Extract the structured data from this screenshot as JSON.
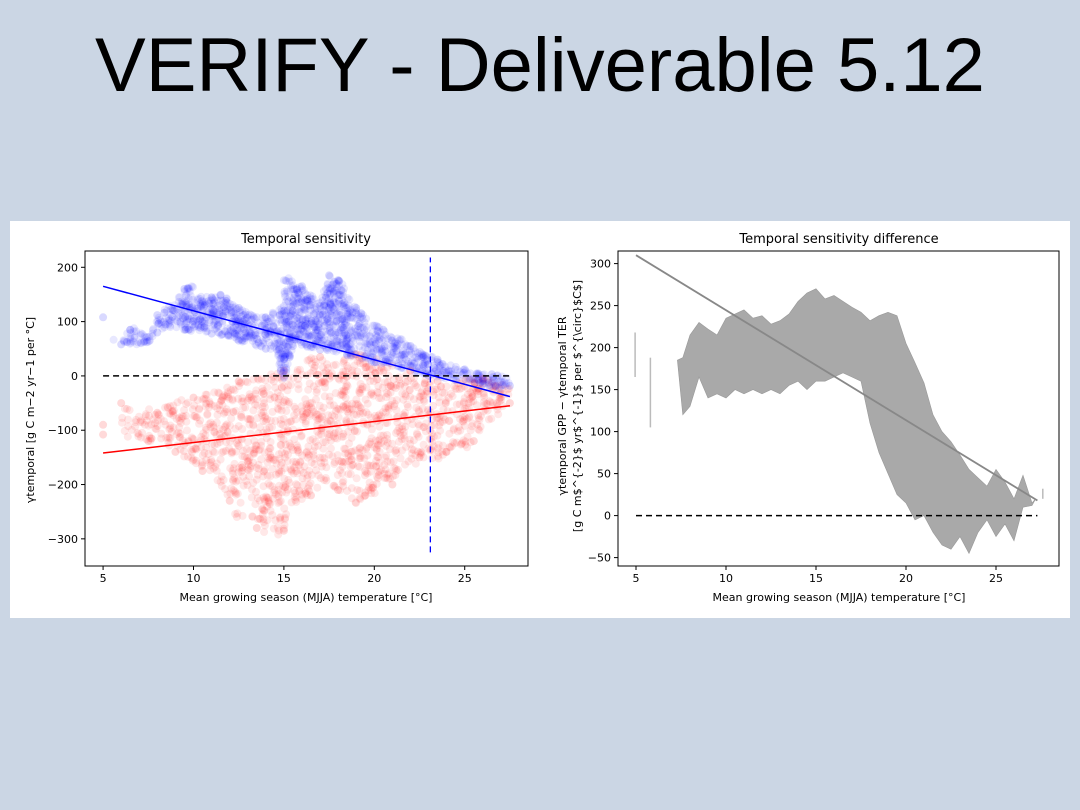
{
  "slide": {
    "title": "VERIFY - Deliverable 5.12"
  },
  "chart_data": [
    {
      "type": "scatter",
      "title": "Temporal sensitivity",
      "xlabel": "Mean growing season (MJJA) temperature [°C]",
      "ylabel": "γtemporal [g C m−2 yr−1 per °C]",
      "xlim": [
        4,
        28.5
      ],
      "ylim": [
        -350,
        230
      ],
      "xticks": [
        5,
        10,
        15,
        20,
        25
      ],
      "yticks": [
        -300,
        -200,
        -100,
        0,
        100,
        200
      ],
      "grid": false,
      "series": [
        {
          "color": "#0000ff",
          "cloud": [
            [
              5,
              108
            ],
            [
              5,
              72
            ],
            [
              6,
              65
            ],
            [
              6.5,
              85
            ],
            [
              7,
              95
            ],
            [
              7.5,
              70
            ],
            [
              8,
              112
            ],
            [
              8.5,
              125
            ],
            [
              9,
              140
            ],
            [
              9.5,
              160
            ],
            [
              10,
              172
            ],
            [
              10,
              150
            ],
            [
              11,
              145
            ],
            [
              11.5,
              150
            ],
            [
              12,
              140
            ],
            [
              12.5,
              125
            ],
            [
              13,
              118
            ],
            [
              13.5,
              112
            ],
            [
              14,
              108
            ],
            [
              15,
              130
            ],
            [
              15,
              185
            ],
            [
              16,
              165
            ],
            [
              16.5,
              150
            ],
            [
              17,
              140
            ],
            [
              17.5,
              185
            ],
            [
              18,
              190
            ],
            [
              18.5,
              150
            ],
            [
              19,
              125
            ],
            [
              19.5,
              110
            ],
            [
              20,
              95
            ],
            [
              20.5,
              85
            ],
            [
              21,
              72
            ],
            [
              21.5,
              68
            ],
            [
              22,
              55
            ],
            [
              22.5,
              45
            ],
            [
              23,
              40
            ],
            [
              23.5,
              30
            ],
            [
              24,
              25
            ],
            [
              24.5,
              18
            ],
            [
              25,
              12
            ],
            [
              25.5,
              8
            ],
            [
              26,
              5
            ],
            [
              26.5,
              3
            ],
            [
              27,
              0
            ],
            [
              27.5,
              -5
            ],
            [
              27.5,
              -18
            ],
            [
              27,
              -25
            ],
            [
              26.5,
              -22
            ],
            [
              26,
              -15
            ],
            [
              25.5,
              -12
            ],
            [
              25,
              -10
            ],
            [
              24.5,
              -8
            ],
            [
              24,
              -5
            ],
            [
              23.5,
              -2
            ],
            [
              23,
              0
            ],
            [
              22.5,
              5
            ],
            [
              22,
              10
            ],
            [
              21.5,
              15
            ],
            [
              21,
              20
            ],
            [
              20.5,
              22
            ],
            [
              20,
              25
            ],
            [
              19.5,
              28
            ],
            [
              19,
              32
            ],
            [
              18.5,
              38
            ],
            [
              18,
              42
            ],
            [
              17.5,
              45
            ],
            [
              17,
              48
            ],
            [
              16.5,
              52
            ],
            [
              16,
              55
            ],
            [
              15.5,
              55
            ],
            [
              15,
              -10
            ],
            [
              14.5,
              45
            ],
            [
              14,
              50
            ],
            [
              13.5,
              55
            ],
            [
              13,
              60
            ],
            [
              12.5,
              65
            ],
            [
              12,
              72
            ],
            [
              11.5,
              75
            ],
            [
              11,
              78
            ],
            [
              10.5,
              80
            ],
            [
              10,
              82
            ],
            [
              9.5,
              85
            ],
            [
              9,
              90
            ],
            [
              8.5,
              88
            ],
            [
              8,
              80
            ],
            [
              7.5,
              62
            ],
            [
              7,
              58
            ],
            [
              6,
              58
            ],
            [
              5,
              72
            ]
          ],
          "fit": {
            "x": [
              5,
              27.5
            ],
            "y": [
              165,
              -38
            ]
          }
        },
        {
          "color": "#ff0000",
          "cloud": [
            [
              5,
              -90
            ],
            [
              5,
              -108
            ],
            [
              6,
              -100
            ],
            [
              6,
              -50
            ],
            [
              7,
              -75
            ],
            [
              7.5,
              -60
            ],
            [
              8,
              -68
            ],
            [
              8.5,
              -55
            ],
            [
              9,
              -45
            ],
            [
              10,
              -40
            ],
            [
              11,
              -30
            ],
            [
              12,
              -20
            ],
            [
              12.5,
              -10
            ],
            [
              13,
              -5
            ],
            [
              14,
              0
            ],
            [
              15,
              10
            ],
            [
              16,
              20
            ],
            [
              16.5,
              35
            ],
            [
              17,
              35
            ],
            [
              18,
              20
            ],
            [
              18.5,
              40
            ],
            [
              19,
              40
            ],
            [
              20,
              35
            ],
            [
              21,
              20
            ],
            [
              22,
              10
            ],
            [
              22.5,
              0
            ],
            [
              23,
              -5
            ],
            [
              23.5,
              -10
            ],
            [
              24,
              -5
            ],
            [
              25,
              -2
            ],
            [
              26,
              -5
            ],
            [
              27,
              -10
            ],
            [
              27.5,
              -20
            ],
            [
              27.5,
              -50
            ],
            [
              27,
              -70
            ],
            [
              26,
              -90
            ],
            [
              25.5,
              -120
            ],
            [
              25,
              -140
            ],
            [
              24.5,
              -130
            ],
            [
              24,
              -140
            ],
            [
              23.5,
              -160
            ],
            [
              23,
              -150
            ],
            [
              22.5,
              -150
            ],
            [
              22,
              -180
            ],
            [
              21.5,
              -160
            ],
            [
              21,
              -200
            ],
            [
              20.5,
              -190
            ],
            [
              20,
              -220
            ],
            [
              19.5,
              -220
            ],
            [
              19,
              -235
            ],
            [
              18.5,
              -215
            ],
            [
              18,
              -210
            ],
            [
              17.5,
              -200
            ],
            [
              17,
              -200
            ],
            [
              16.5,
              -220
            ],
            [
              16,
              -230
            ],
            [
              15.5,
              -260
            ],
            [
              15,
              -285
            ],
            [
              14.5,
              -300
            ],
            [
              14,
              -292
            ],
            [
              13.5,
              -280
            ],
            [
              13,
              -250
            ],
            [
              12.5,
              -270
            ],
            [
              12,
              -230
            ],
            [
              11.5,
              -200
            ],
            [
              11,
              -180
            ],
            [
              10.5,
              -175
            ],
            [
              10,
              -165
            ],
            [
              9.5,
              -150
            ],
            [
              9,
              -140
            ],
            [
              8.5,
              -128
            ],
            [
              8,
              -125
            ],
            [
              7.5,
              -120
            ],
            [
              7,
              -118
            ],
            [
              6,
              -115
            ],
            [
              5,
              -108
            ]
          ],
          "fit": {
            "x": [
              5,
              27.5
            ],
            "y": [
              -142,
              -55
            ]
          }
        }
      ],
      "reference_lines": [
        {
          "orientation": "horizontal",
          "y": 0,
          "style": "dashed",
          "color": "#000000"
        },
        {
          "orientation": "vertical",
          "x": 23.1,
          "style": "dashed",
          "color": "#0000ff",
          "y_range": [
            -325,
            218
          ]
        }
      ]
    },
    {
      "type": "area",
      "title": "Temporal sensitivity difference",
      "xlabel": "Mean growing season (MJJA) temperature [°C]",
      "ylabel_line1": "γtemporal GPP − γtemporal TER",
      "ylabel_line2": "[g C m$^{-2}$ yr$^{-1}$ per $^{\\circ}$C$]",
      "xlim": [
        4,
        28.5
      ],
      "ylim": [
        -60,
        315
      ],
      "xticks": [
        5,
        10,
        15,
        20,
        25
      ],
      "yticks": [
        -50,
        0,
        50,
        100,
        150,
        200,
        250,
        300
      ],
      "grid": false,
      "fill_color": "#a9a9a9",
      "band_upper": [
        [
          7.3,
          185
        ],
        [
          7.6,
          188
        ],
        [
          8,
          215
        ],
        [
          8.5,
          230
        ],
        [
          9,
          222
        ],
        [
          9.5,
          215
        ],
        [
          10,
          235
        ],
        [
          10.5,
          240
        ],
        [
          11,
          245
        ],
        [
          11.5,
          235
        ],
        [
          12,
          238
        ],
        [
          12.5,
          228
        ],
        [
          13,
          232
        ],
        [
          13.5,
          240
        ],
        [
          14,
          255
        ],
        [
          14.5,
          265
        ],
        [
          15,
          270
        ],
        [
          15.5,
          258
        ],
        [
          16,
          262
        ],
        [
          16.5,
          255
        ],
        [
          17,
          248
        ],
        [
          17.5,
          242
        ],
        [
          18,
          232
        ],
        [
          18.5,
          238
        ],
        [
          19,
          242
        ],
        [
          19.5,
          238
        ],
        [
          20,
          205
        ],
        [
          20.5,
          182
        ],
        [
          21,
          158
        ],
        [
          21.5,
          120
        ],
        [
          22,
          100
        ],
        [
          22.5,
          88
        ],
        [
          23,
          72
        ],
        [
          23.5,
          55
        ],
        [
          24,
          45
        ],
        [
          24.5,
          35
        ],
        [
          25,
          55
        ],
        [
          25.5,
          40
        ],
        [
          26,
          20
        ],
        [
          26.5,
          48
        ],
        [
          27,
          15
        ],
        [
          27.2,
          20
        ]
      ],
      "band_lower": [
        [
          27.2,
          20
        ],
        [
          27,
          12
        ],
        [
          26.5,
          10
        ],
        [
          26,
          -30
        ],
        [
          25.5,
          -10
        ],
        [
          25,
          -25
        ],
        [
          24.5,
          -5
        ],
        [
          24,
          -20
        ],
        [
          23.5,
          -45
        ],
        [
          23,
          -25
        ],
        [
          22.5,
          -40
        ],
        [
          22,
          -35
        ],
        [
          21.5,
          -20
        ],
        [
          21,
          0
        ],
        [
          20.5,
          -5
        ],
        [
          20,
          15
        ],
        [
          19.5,
          25
        ],
        [
          19,
          50
        ],
        [
          18.5,
          75
        ],
        [
          18,
          110
        ],
        [
          17.5,
          160
        ],
        [
          17,
          165
        ],
        [
          16.5,
          170
        ],
        [
          16,
          165
        ],
        [
          15.5,
          160
        ],
        [
          15,
          160
        ],
        [
          14.5,
          150
        ],
        [
          14,
          160
        ],
        [
          13.5,
          155
        ],
        [
          13,
          145
        ],
        [
          12.5,
          150
        ],
        [
          12,
          145
        ],
        [
          11.5,
          150
        ],
        [
          11,
          145
        ],
        [
          10.5,
          150
        ],
        [
          10,
          140
        ],
        [
          9.5,
          145
        ],
        [
          9,
          140
        ],
        [
          8.5,
          165
        ],
        [
          8,
          130
        ],
        [
          7.6,
          120
        ],
        [
          7.3,
          185
        ]
      ],
      "trend_line": {
        "x": [
          5,
          27.3
        ],
        "y": [
          310,
          18
        ],
        "color": "#888888"
      },
      "vertical_segments": [
        {
          "x": 4.95,
          "y": [
            165,
            218
          ]
        },
        {
          "x": 5.8,
          "y": [
            105,
            188
          ]
        },
        {
          "x": 27.6,
          "y": [
            20,
            32
          ]
        }
      ],
      "reference_lines": [
        {
          "orientation": "horizontal",
          "y": 0,
          "style": "dashed",
          "color": "#000000"
        }
      ]
    }
  ]
}
